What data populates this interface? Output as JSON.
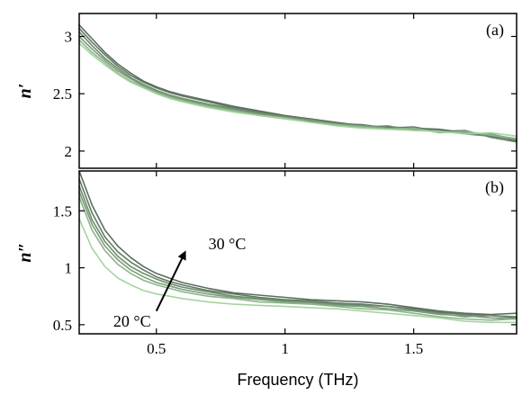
{
  "chart_data": [
    {
      "type": "line",
      "panel_label": "(a)",
      "ylabel": "n′",
      "xlabel": "",
      "xlim": [
        0.2,
        1.9
      ],
      "ylim": [
        1.85,
        3.2
      ],
      "yticks": [
        2,
        2.5,
        3
      ],
      "ytick_labels": [
        "2",
        "2.5",
        "3"
      ],
      "xticks": [
        0.5,
        1,
        1.5
      ],
      "xtick_labels": [
        "",
        "",
        ""
      ],
      "grid": false,
      "x": [
        0.2,
        0.25,
        0.3,
        0.35,
        0.4,
        0.45,
        0.5,
        0.55,
        0.6,
        0.7,
        0.8,
        0.9,
        1.0,
        1.1,
        1.2,
        1.3,
        1.4,
        1.5,
        1.6,
        1.7,
        1.8,
        1.9
      ],
      "series": [
        {
          "color": "#5a6f5c",
          "values": [
            3.1,
            2.98,
            2.86,
            2.76,
            2.68,
            2.61,
            2.56,
            2.52,
            2.49,
            2.44,
            2.39,
            2.35,
            2.31,
            2.28,
            2.25,
            2.22,
            2.21,
            2.2,
            2.19,
            2.16,
            2.14,
            2.09
          ]
        },
        {
          "color": "#627a63",
          "values": [
            3.07,
            2.95,
            2.84,
            2.74,
            2.66,
            2.6,
            2.55,
            2.51,
            2.48,
            2.43,
            2.38,
            2.34,
            2.3,
            2.28,
            2.24,
            2.23,
            2.2,
            2.21,
            2.17,
            2.18,
            2.12,
            2.08
          ]
        },
        {
          "color": "#6d8a6d",
          "values": [
            3.04,
            2.92,
            2.81,
            2.72,
            2.64,
            2.58,
            2.53,
            2.49,
            2.46,
            2.41,
            2.37,
            2.33,
            2.3,
            2.26,
            2.24,
            2.21,
            2.22,
            2.18,
            2.18,
            2.15,
            2.13,
            2.1
          ]
        },
        {
          "color": "#7c9c7b",
          "values": [
            3.0,
            2.89,
            2.79,
            2.7,
            2.63,
            2.57,
            2.52,
            2.48,
            2.45,
            2.4,
            2.36,
            2.32,
            2.29,
            2.27,
            2.23,
            2.22,
            2.2,
            2.19,
            2.17,
            2.16,
            2.15,
            2.1
          ]
        },
        {
          "color": "#8db58a",
          "values": [
            2.97,
            2.86,
            2.77,
            2.68,
            2.61,
            2.56,
            2.51,
            2.47,
            2.44,
            2.39,
            2.35,
            2.31,
            2.29,
            2.25,
            2.23,
            2.21,
            2.19,
            2.2,
            2.16,
            2.17,
            2.14,
            2.11
          ]
        },
        {
          "color": "#a5d4a0",
          "values": [
            2.94,
            2.84,
            2.75,
            2.67,
            2.6,
            2.55,
            2.5,
            2.46,
            2.43,
            2.38,
            2.34,
            2.31,
            2.28,
            2.25,
            2.22,
            2.2,
            2.19,
            2.18,
            2.17,
            2.15,
            2.16,
            2.13
          ]
        }
      ]
    },
    {
      "type": "line",
      "panel_label": "(b)",
      "ylabel": "n″",
      "xlabel": "Frequency (THz)",
      "xlim": [
        0.2,
        1.9
      ],
      "ylim": [
        0.42,
        1.85
      ],
      "yticks": [
        0.5,
        1,
        1.5
      ],
      "ytick_labels": [
        "0.5",
        "1",
        "1.5"
      ],
      "xticks": [
        0.5,
        1,
        1.5
      ],
      "xtick_labels": [
        "0.5",
        "1",
        "1.5"
      ],
      "grid": false,
      "annotations": [
        {
          "text": "30 °C",
          "x": 0.72,
          "y": 1.21
        },
        {
          "text": "20 °C",
          "x": 0.35,
          "y": 0.53
        }
      ],
      "x": [
        0.2,
        0.25,
        0.3,
        0.35,
        0.4,
        0.45,
        0.5,
        0.55,
        0.6,
        0.7,
        0.8,
        0.9,
        1.0,
        1.1,
        1.2,
        1.3,
        1.4,
        1.5,
        1.6,
        1.7,
        1.8,
        1.9
      ],
      "series": [
        {
          "color": "#5a6f5c",
          "values": [
            1.85,
            1.55,
            1.33,
            1.19,
            1.09,
            1.01,
            0.95,
            0.91,
            0.87,
            0.82,
            0.78,
            0.76,
            0.74,
            0.72,
            0.71,
            0.7,
            0.68,
            0.65,
            0.62,
            0.6,
            0.59,
            0.6
          ]
        },
        {
          "color": "#627a63",
          "values": [
            1.78,
            1.48,
            1.27,
            1.14,
            1.05,
            0.98,
            0.92,
            0.88,
            0.85,
            0.8,
            0.77,
            0.74,
            0.72,
            0.71,
            0.69,
            0.68,
            0.66,
            0.64,
            0.61,
            0.59,
            0.58,
            0.56
          ]
        },
        {
          "color": "#6d8a6d",
          "values": [
            1.72,
            1.42,
            1.23,
            1.1,
            1.01,
            0.95,
            0.9,
            0.86,
            0.83,
            0.79,
            0.75,
            0.73,
            0.71,
            0.7,
            0.68,
            0.67,
            0.66,
            0.63,
            0.6,
            0.57,
            0.58,
            0.57
          ]
        },
        {
          "color": "#7c9c7b",
          "values": [
            1.67,
            1.38,
            1.19,
            1.07,
            0.98,
            0.92,
            0.87,
            0.84,
            0.81,
            0.77,
            0.74,
            0.72,
            0.7,
            0.69,
            0.67,
            0.66,
            0.64,
            0.62,
            0.59,
            0.58,
            0.56,
            0.55
          ]
        },
        {
          "color": "#8db58a",
          "values": [
            1.62,
            1.33,
            1.15,
            1.03,
            0.95,
            0.89,
            0.85,
            0.82,
            0.79,
            0.75,
            0.73,
            0.7,
            0.69,
            0.68,
            0.66,
            0.64,
            0.63,
            0.6,
            0.57,
            0.55,
            0.54,
            0.55
          ]
        },
        {
          "color": "#a5d4a0",
          "values": [
            1.43,
            1.17,
            1.01,
            0.91,
            0.85,
            0.8,
            0.77,
            0.75,
            0.73,
            0.7,
            0.68,
            0.67,
            0.66,
            0.65,
            0.64,
            0.62,
            0.6,
            0.58,
            0.56,
            0.53,
            0.52,
            0.52
          ]
        }
      ]
    }
  ]
}
